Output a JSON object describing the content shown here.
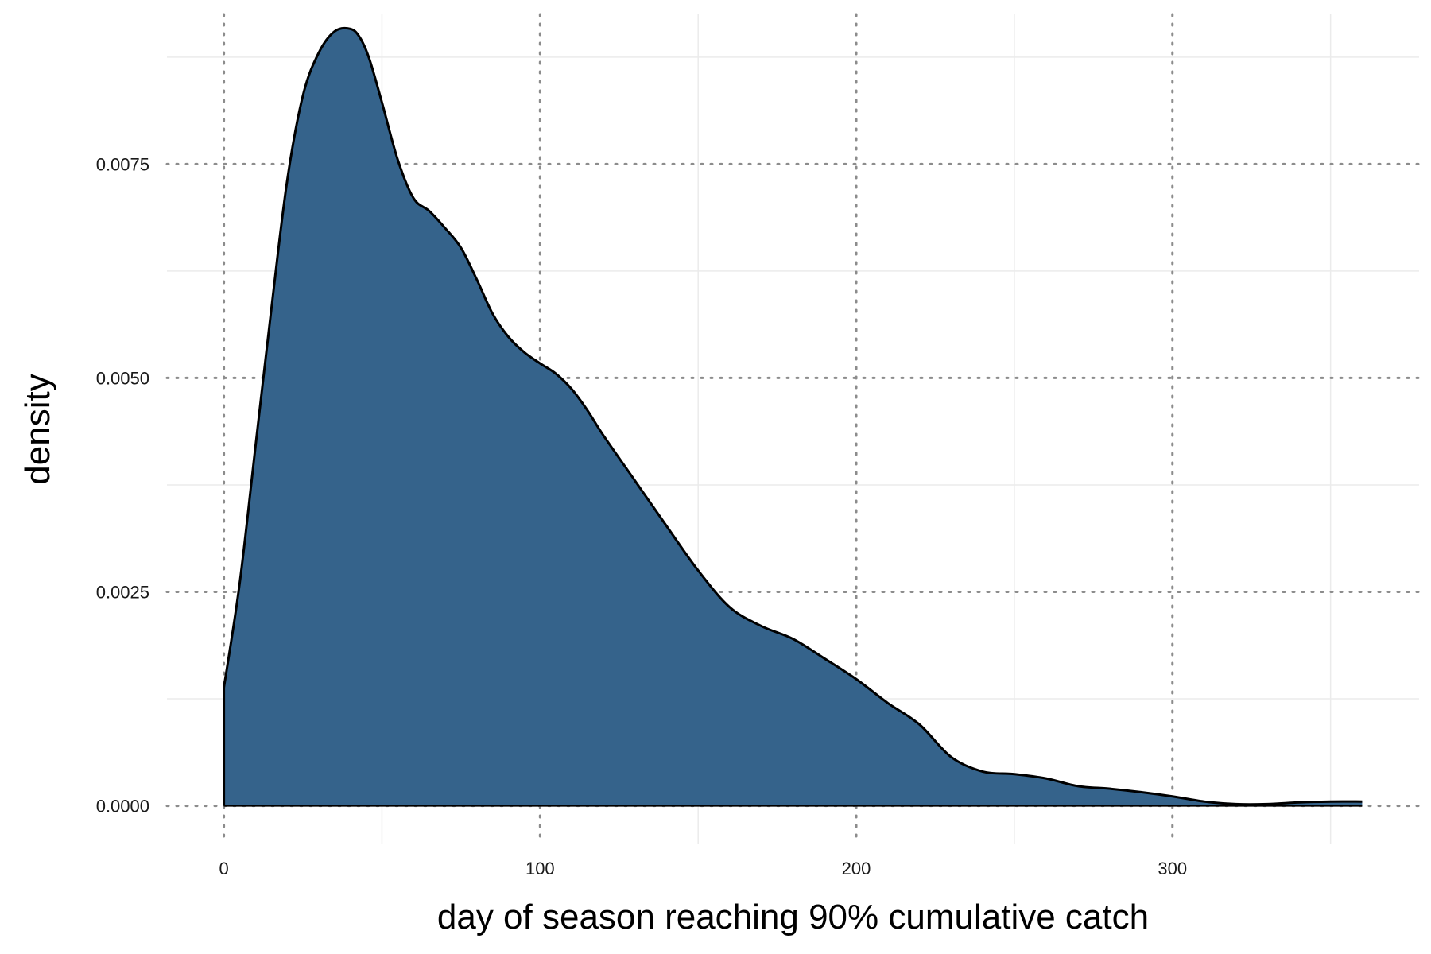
{
  "chart_data": {
    "type": "area",
    "title": "",
    "xlabel": "day of season reaching 90% cumulative catch",
    "ylabel": "density",
    "xlim": [
      -18,
      378
    ],
    "ylim": [
      -0.00045,
      0.00925
    ],
    "x_ticks": [
      0,
      100,
      200,
      300
    ],
    "x_tick_labels": [
      "0",
      "100",
      "200",
      "300"
    ],
    "y_ticks": [
      0,
      0.0025,
      0.005,
      0.0075
    ],
    "y_tick_labels": [
      "0.0000",
      "0.0025",
      "0.0050",
      "0.0075"
    ],
    "x_minor": [
      50,
      150,
      250,
      350
    ],
    "y_minor": [
      0.00125,
      0.00375,
      0.00625,
      0.00875
    ],
    "grid": true,
    "legend": "none",
    "colors": {
      "fill": "#35638B",
      "outline": "#000000",
      "grid_major": "#8c8c8c",
      "grid_minor": "#ebebeb"
    },
    "series": [
      {
        "x": [
          0,
          5,
          10,
          15,
          20,
          25,
          30,
          35,
          40,
          43,
          46,
          50,
          55,
          60,
          65,
          70,
          75,
          80,
          85,
          90,
          95,
          100,
          105,
          110,
          115,
          120,
          130,
          140,
          150,
          160,
          170,
          180,
          190,
          200,
          210,
          220,
          230,
          240,
          250,
          260,
          270,
          280,
          290,
          300,
          310,
          320,
          330,
          340,
          350,
          360
        ],
        "y": [
          0.00138,
          0.0026,
          0.0042,
          0.0058,
          0.0073,
          0.0083,
          0.0088,
          0.00905,
          0.00908,
          0.00898,
          0.00873,
          0.00822,
          0.00755,
          0.0071,
          0.00695,
          0.00675,
          0.00652,
          0.00615,
          0.00575,
          0.00548,
          0.0053,
          0.00517,
          0.00505,
          0.00487,
          0.00462,
          0.00433,
          0.0038,
          0.00327,
          0.00275,
          0.00232,
          0.0021,
          0.00195,
          0.00172,
          0.00148,
          0.0012,
          0.00095,
          0.00057,
          0.0004,
          0.00037,
          0.00032,
          0.00023,
          0.0002,
          0.00016,
          0.00011,
          5e-05,
          2e-05,
          2e-05,
          4e-05,
          5e-05,
          5e-05
        ]
      }
    ]
  }
}
